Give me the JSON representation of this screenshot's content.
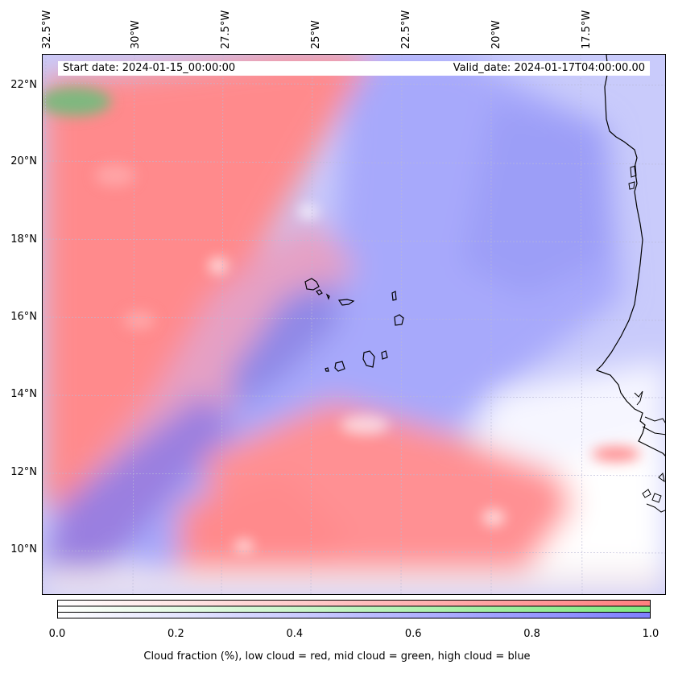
{
  "map": {
    "start_date": "Start date: 2024-01-15_00:00:00",
    "valid_date": "Valid_date: 2024-01-17T04:00:00.00",
    "lon_labels": [
      "32.5°W",
      "30°W",
      "27.5°W",
      "25°W",
      "22.5°W",
      "20°W",
      "17.5°W"
    ],
    "lat_labels": [
      "22°N",
      "20°N",
      "18°N",
      "16°N",
      "14°N",
      "12°N",
      "10°N"
    ],
    "colors": {
      "low": "#ff7f7f",
      "mid": "#7fea7f",
      "high": "#7f7fff",
      "coast": "#000000"
    }
  },
  "colorbar": {
    "ticks": [
      "0.0",
      "0.2",
      "0.4",
      "0.6",
      "0.8",
      "1.0"
    ],
    "caption": "Cloud fraction (%), low cloud = red, mid cloud = green, high cloud = blue"
  }
}
